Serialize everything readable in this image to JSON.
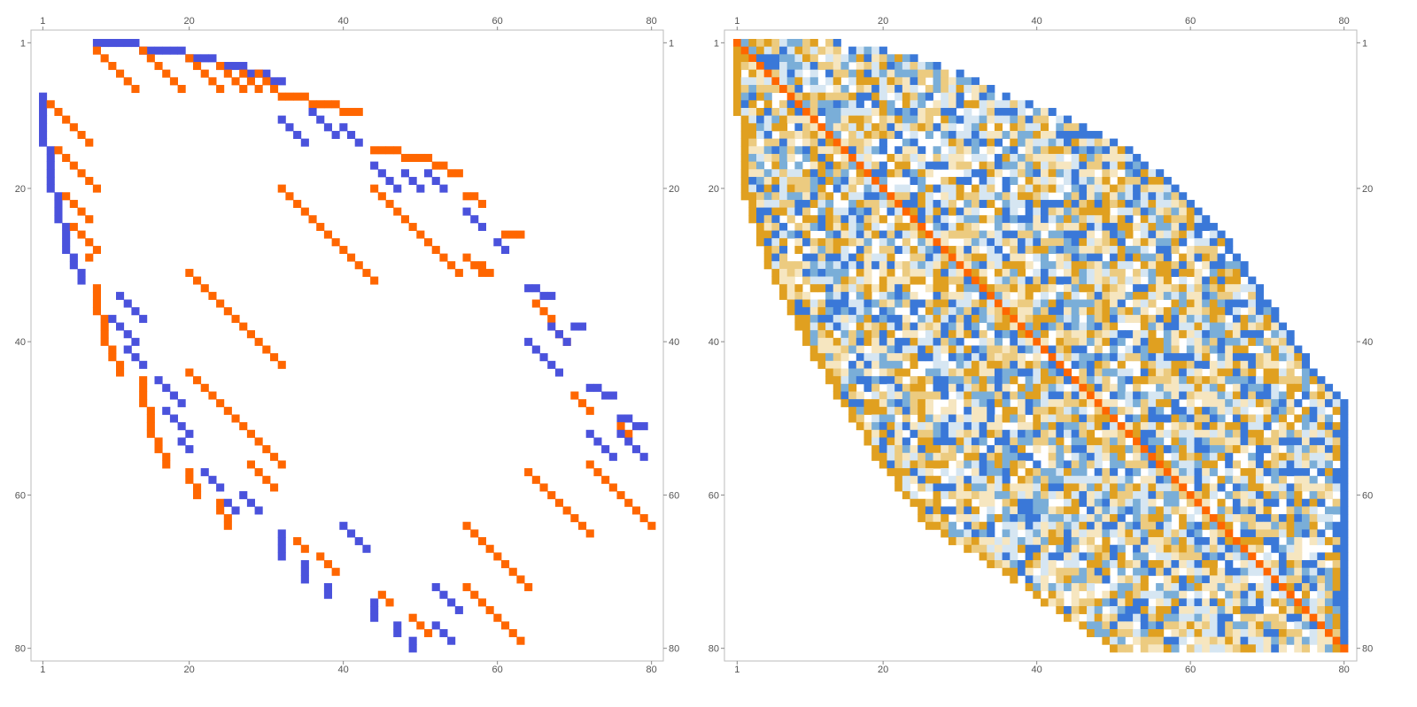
{
  "chart_data": [
    {
      "type": "heatmap",
      "title": "",
      "subtitle": "",
      "xlabel": "",
      "ylabel": "",
      "matrix_size": 80,
      "x_ticks": [
        1,
        20,
        40,
        60,
        80
      ],
      "y_ticks": [
        1,
        20,
        40,
        60,
        80
      ],
      "xlim": [
        1,
        80
      ],
      "ylim": [
        1,
        80
      ],
      "y_axis_direction": "top-to-bottom",
      "grid": false,
      "legend": "none",
      "colors": {
        "positive": "#ff6600",
        "negative": "#4a52dc"
      },
      "cells": [
        {
          "row": 1,
          "col_start": 8,
          "col_end": 13,
          "color": "negative"
        },
        {
          "row": 2,
          "col_start": 14,
          "col_end": 19,
          "color": "negative"
        },
        {
          "row": 3,
          "col_start": 20,
          "col_end": 23,
          "color": "negative"
        },
        {
          "row": 4,
          "col_start": 24,
          "col_end": 27,
          "color": "negative"
        },
        {
          "row": 5,
          "col_start": 28,
          "col_end": 30,
          "color": "negative"
        },
        {
          "row": 6,
          "col_start": 31,
          "col_end": 32,
          "color": "negative"
        },
        {
          "row": 8,
          "col_start": 32,
          "col_end": 35,
          "color": "positive"
        },
        {
          "row": 9,
          "col_start": 36,
          "col_end": 39,
          "color": "positive"
        },
        {
          "row": 10,
          "col_start": 40,
          "col_end": 42,
          "color": "positive"
        },
        {
          "row": 15,
          "col_start": 44,
          "col_end": 47,
          "color": "positive"
        },
        {
          "row": 16,
          "col_start": 48,
          "col_end": 51,
          "color": "positive"
        },
        {
          "row": 17,
          "col_start": 52,
          "col_end": 53,
          "color": "positive"
        },
        {
          "row": 18,
          "col_start": 54,
          "col_end": 55,
          "color": "positive"
        },
        {
          "row": 21,
          "col_start": 56,
          "col_end": 57,
          "color": "positive"
        },
        {
          "row": 22,
          "col_start": 58,
          "col_end": 58,
          "color": "positive"
        },
        {
          "row": 26,
          "col_start": 61,
          "col_end": 63,
          "color": "positive"
        },
        {
          "row": 33,
          "col_start": 64,
          "col_end": 65,
          "color": "negative"
        },
        {
          "row": 34,
          "col_start": 66,
          "col_end": 67,
          "color": "negative"
        },
        {
          "row": 38,
          "col_start": 70,
          "col_end": 71,
          "color": "negative"
        },
        {
          "row": 46,
          "col_start": 72,
          "col_end": 73,
          "color": "negative"
        },
        {
          "row": 47,
          "col_start": 74,
          "col_end": 75,
          "color": "negative"
        },
        {
          "row": 50,
          "col_start": 76,
          "col_end": 77,
          "color": "negative"
        },
        {
          "row": 51,
          "col_start": 78,
          "col_end": 79,
          "color": "negative"
        }
      ],
      "vertical_runs": [
        {
          "col": 1,
          "row_start": 8,
          "row_end": 14,
          "color": "negative"
        },
        {
          "col": 2,
          "row_start": 15,
          "row_end": 20,
          "color": "negative"
        },
        {
          "col": 3,
          "row_start": 21,
          "row_end": 24,
          "color": "negative"
        },
        {
          "col": 4,
          "row_start": 25,
          "row_end": 28,
          "color": "negative"
        },
        {
          "col": 5,
          "row_start": 29,
          "row_end": 30,
          "color": "negative"
        },
        {
          "col": 6,
          "row_start": 31,
          "row_end": 32,
          "color": "negative"
        },
        {
          "col": 8,
          "row_start": 33,
          "row_end": 36,
          "color": "positive"
        },
        {
          "col": 9,
          "row_start": 37,
          "row_end": 40,
          "color": "positive"
        },
        {
          "col": 10,
          "row_start": 41,
          "row_end": 42,
          "color": "positive"
        },
        {
          "col": 11,
          "row_start": 43,
          "row_end": 44,
          "color": "positive"
        },
        {
          "col": 14,
          "row_start": 45,
          "row_end": 48,
          "color": "positive"
        },
        {
          "col": 15,
          "row_start": 49,
          "row_end": 52,
          "color": "positive"
        },
        {
          "col": 16,
          "row_start": 53,
          "row_end": 54,
          "color": "positive"
        },
        {
          "col": 17,
          "row_start": 55,
          "row_end": 56,
          "color": "positive"
        },
        {
          "col": 20,
          "row_start": 57,
          "row_end": 58,
          "color": "positive"
        },
        {
          "col": 21,
          "row_start": 59,
          "row_end": 60,
          "color": "positive"
        },
        {
          "col": 24,
          "row_start": 61,
          "row_end": 62,
          "color": "positive"
        },
        {
          "col": 25,
          "row_start": 63,
          "row_end": 64,
          "color": "positive"
        },
        {
          "col": 32,
          "row_start": 65,
          "row_end": 68,
          "color": "negative"
        },
        {
          "col": 35,
          "row_start": 69,
          "row_end": 71,
          "color": "negative"
        },
        {
          "col": 38,
          "row_start": 72,
          "row_end": 73,
          "color": "negative"
        },
        {
          "col": 44,
          "row_start": 74,
          "row_end": 76,
          "color": "negative"
        },
        {
          "col": 47,
          "row_start": 77,
          "row_end": 78,
          "color": "negative"
        },
        {
          "col": 49,
          "row_start": 79,
          "row_end": 80,
          "color": "negative"
        }
      ],
      "diagonals": [
        {
          "row": 2,
          "col": 8,
          "len": 6,
          "color": "positive"
        },
        {
          "row": 2,
          "col": 14,
          "len": 6,
          "color": "positive"
        },
        {
          "row": 3,
          "col": 20,
          "len": 5,
          "color": "positive"
        },
        {
          "row": 4,
          "col": 24,
          "len": 4,
          "color": "positive"
        },
        {
          "row": 5,
          "col": 29,
          "len": 3,
          "color": "positive"
        },
        {
          "row": 5,
          "col": 27,
          "len": 3,
          "color": "positive"
        },
        {
          "row": 9,
          "col": 2,
          "len": 6,
          "color": "positive"
        },
        {
          "row": 15,
          "col": 3,
          "len": 6,
          "color": "positive"
        },
        {
          "row": 21,
          "col": 4,
          "len": 4,
          "color": "positive"
        },
        {
          "row": 25,
          "col": 5,
          "len": 4,
          "color": "positive"
        },
        {
          "row": 29,
          "col": 7,
          "len": 1,
          "color": "positive"
        },
        {
          "row": 11,
          "col": 32,
          "len": 4,
          "color": "negative"
        },
        {
          "row": 10,
          "col": 36,
          "len": 4,
          "color": "negative"
        },
        {
          "row": 12,
          "col": 40,
          "len": 3,
          "color": "negative"
        },
        {
          "row": 17,
          "col": 44,
          "len": 4,
          "color": "negative"
        },
        {
          "row": 18,
          "col": 48,
          "len": 3,
          "color": "negative"
        },
        {
          "row": 18,
          "col": 51,
          "len": 3,
          "color": "negative"
        },
        {
          "row": 23,
          "col": 56,
          "len": 3,
          "color": "negative"
        },
        {
          "row": 27,
          "col": 60,
          "len": 2,
          "color": "negative"
        },
        {
          "row": 34,
          "col": 11,
          "len": 4,
          "color": "negative"
        },
        {
          "row": 37,
          "col": 10,
          "len": 4,
          "color": "negative"
        },
        {
          "row": 41,
          "col": 12,
          "len": 3,
          "color": "negative"
        },
        {
          "row": 45,
          "col": 16,
          "len": 4,
          "color": "negative"
        },
        {
          "row": 49,
          "col": 17,
          "len": 4,
          "color": "negative"
        },
        {
          "row": 53,
          "col": 19,
          "len": 2,
          "color": "negative"
        },
        {
          "row": 57,
          "col": 22,
          "len": 3,
          "color": "negative"
        },
        {
          "row": 61,
          "col": 25,
          "len": 2,
          "color": "negative"
        },
        {
          "row": 60,
          "col": 27,
          "len": 3,
          "color": "negative"
        },
        {
          "row": 20,
          "col": 32,
          "len": 13,
          "color": "positive"
        },
        {
          "row": 20,
          "col": 44,
          "len": 12,
          "color": "positive"
        },
        {
          "row": 29,
          "col": 56,
          "len": 3,
          "color": "positive"
        },
        {
          "row": 30,
          "col": 58,
          "len": 2,
          "color": "positive"
        },
        {
          "row": 31,
          "col": 20,
          "len": 13,
          "color": "positive"
        },
        {
          "row": 44,
          "col": 20,
          "len": 13,
          "color": "positive"
        },
        {
          "row": 56,
          "col": 28,
          "len": 4,
          "color": "positive"
        },
        {
          "row": 57,
          "col": 64,
          "len": 9,
          "color": "positive"
        },
        {
          "row": 56,
          "col": 72,
          "len": 9,
          "color": "positive"
        },
        {
          "row": 64,
          "col": 56,
          "len": 9,
          "color": "positive"
        },
        {
          "row": 72,
          "col": 56,
          "len": 8,
          "color": "positive"
        },
        {
          "row": 66,
          "col": 34,
          "len": 2,
          "color": "positive"
        },
        {
          "row": 68,
          "col": 37,
          "len": 3,
          "color": "positive"
        },
        {
          "row": 73,
          "col": 45,
          "len": 2,
          "color": "positive"
        },
        {
          "row": 76,
          "col": 49,
          "len": 3,
          "color": "positive"
        },
        {
          "row": 64,
          "col": 40,
          "len": 4,
          "color": "negative"
        },
        {
          "row": 72,
          "col": 52,
          "len": 4,
          "color": "negative"
        },
        {
          "row": 77,
          "col": 52,
          "len": 3,
          "color": "negative"
        },
        {
          "row": 35,
          "col": 65,
          "len": 3,
          "color": "positive"
        },
        {
          "row": 39,
          "col": 68,
          "len": 2,
          "color": "positive"
        },
        {
          "row": 40,
          "col": 64,
          "len": 5,
          "color": "negative"
        },
        {
          "row": 38,
          "col": 67,
          "len": 3,
          "color": "negative"
        },
        {
          "row": 47,
          "col": 70,
          "len": 3,
          "color": "positive"
        },
        {
          "row": 51,
          "col": 76,
          "len": 2,
          "color": "positive"
        },
        {
          "row": 52,
          "col": 72,
          "len": 4,
          "color": "negative"
        },
        {
          "row": 52,
          "col": 76,
          "len": 4,
          "color": "negative"
        }
      ]
    },
    {
      "type": "heatmap",
      "title": "",
      "subtitle": "",
      "xlabel": "",
      "ylabel": "",
      "matrix_size": 80,
      "x_ticks": [
        1,
        20,
        40,
        60,
        80
      ],
      "y_ticks": [
        1,
        20,
        40,
        60,
        80
      ],
      "xlim": [
        1,
        80
      ],
      "ylim": [
        1,
        80
      ],
      "y_axis_direction": "top-to-bottom",
      "grid": false,
      "legend": "none",
      "colors": {
        "diagonal": "#ff6600",
        "strong_negative": "#3a78d8",
        "mid_negative": "#7aaed8",
        "weak_negative": "#d6e6f2",
        "weak_positive": "#f6e6c0",
        "mid_positive": "#eccb80",
        "strong_positive": "#e0a020"
      },
      "shape": "lower-right envelope",
      "envelope_right_col_by_row": [
        {
          "row": 1,
          "col": 14
        },
        {
          "row": 2,
          "col": 20
        },
        {
          "row": 4,
          "col": 27
        },
        {
          "row": 6,
          "col": 32
        },
        {
          "row": 8,
          "col": 36
        },
        {
          "row": 10,
          "col": 42
        },
        {
          "row": 15,
          "col": 52
        },
        {
          "row": 20,
          "col": 58
        },
        {
          "row": 26,
          "col": 64
        },
        {
          "row": 32,
          "col": 68
        },
        {
          "row": 38,
          "col": 72
        },
        {
          "row": 44,
          "col": 76
        },
        {
          "row": 48,
          "col": 80
        },
        {
          "row": 80,
          "col": 80
        }
      ],
      "envelope_left_col_by_row": [
        {
          "row": 1,
          "col": 1
        },
        {
          "row": 20,
          "col": 2
        },
        {
          "row": 32,
          "col": 6
        },
        {
          "row": 40,
          "col": 10
        },
        {
          "row": 48,
          "col": 15
        },
        {
          "row": 56,
          "col": 20
        },
        {
          "row": 64,
          "col": 26
        },
        {
          "row": 70,
          "col": 36
        },
        {
          "row": 76,
          "col": 44
        },
        {
          "row": 80,
          "col": 50
        }
      ]
    }
  ]
}
